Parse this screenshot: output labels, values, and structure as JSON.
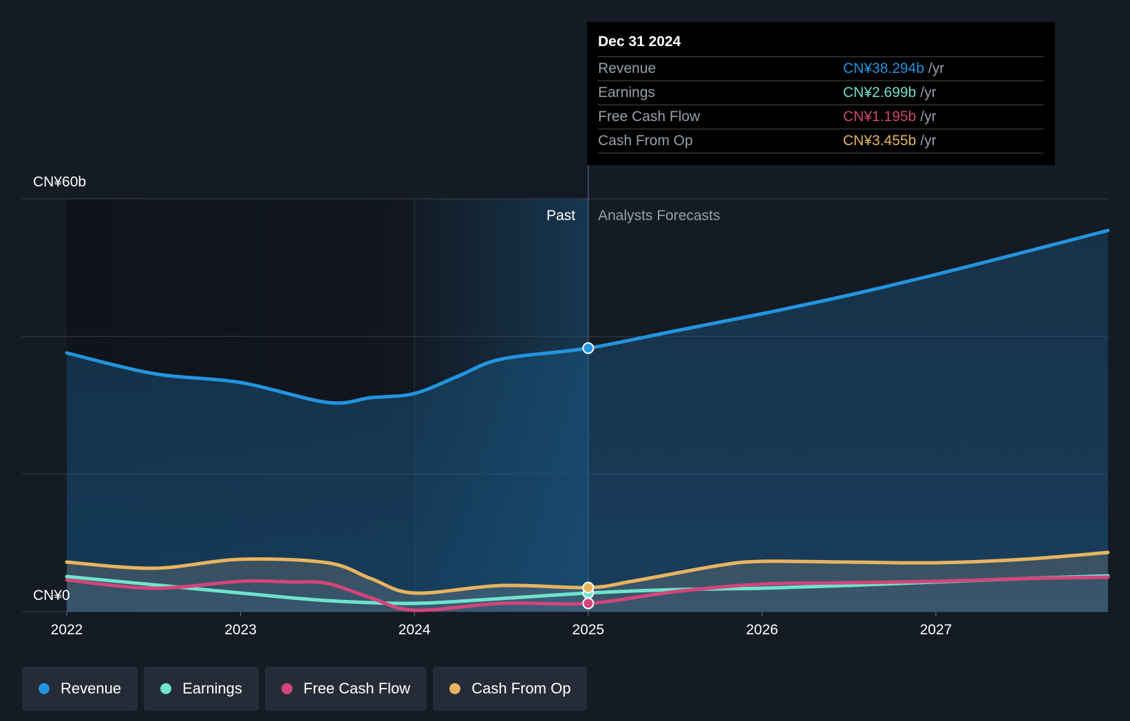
{
  "chart_data": {
    "type": "area",
    "y_axis": {
      "min": 0,
      "max": 60,
      "top_label": "CN¥60b",
      "bottom_label": "CN¥0"
    },
    "x_axis": {
      "min": 2022,
      "max": 2027.99,
      "ticks": [
        "2022",
        "2023",
        "2024",
        "2025",
        "2026",
        "2027"
      ]
    },
    "past_label": "Past",
    "forecast_label": "Analysts Forecasts",
    "divider_x": 2025,
    "highlight_start_x": 2024,
    "series": [
      {
        "name": "Revenue",
        "color": "#2394df",
        "points": [
          [
            2022,
            37.6
          ],
          [
            2022.5,
            34.6
          ],
          [
            2023,
            33.3
          ],
          [
            2023.5,
            30.4
          ],
          [
            2023.75,
            31.1
          ],
          [
            2024,
            31.7
          ],
          [
            2024.25,
            34.2
          ],
          [
            2024.5,
            36.7
          ],
          [
            2025,
            38.3
          ],
          [
            2025.5,
            40.8
          ],
          [
            2026,
            43.3
          ],
          [
            2026.5,
            46.0
          ],
          [
            2027,
            49.0
          ],
          [
            2027.5,
            52.2
          ],
          [
            2027.99,
            55.4
          ]
        ]
      },
      {
        "name": "Earnings",
        "color": "#6fe3cc",
        "points": [
          [
            2022,
            5.1
          ],
          [
            2022.5,
            3.9
          ],
          [
            2023,
            2.7
          ],
          [
            2023.5,
            1.6
          ],
          [
            2024,
            1.2
          ],
          [
            2024.5,
            1.9
          ],
          [
            2025,
            2.7
          ],
          [
            2025.5,
            3.2
          ],
          [
            2026,
            3.4
          ],
          [
            2026.5,
            3.8
          ],
          [
            2027,
            4.3
          ],
          [
            2027.5,
            4.8
          ],
          [
            2027.99,
            5.2
          ]
        ]
      },
      {
        "name": "Free Cash Flow",
        "color": "#d3457a",
        "points": [
          [
            2022,
            4.6
          ],
          [
            2022.5,
            3.4
          ],
          [
            2023,
            4.4
          ],
          [
            2023.3,
            4.3
          ],
          [
            2023.5,
            4.1
          ],
          [
            2023.75,
            2.0
          ],
          [
            2024,
            0.2
          ],
          [
            2024.5,
            1.2
          ],
          [
            2025,
            1.2
          ],
          [
            2025.5,
            2.9
          ],
          [
            2026,
            4.0
          ],
          [
            2026.5,
            4.2
          ],
          [
            2027,
            4.4
          ],
          [
            2027.5,
            4.8
          ],
          [
            2027.99,
            5.0
          ]
        ]
      },
      {
        "name": "Cash From Op",
        "color": "#e8b460",
        "points": [
          [
            2022,
            7.2
          ],
          [
            2022.5,
            6.3
          ],
          [
            2023,
            7.6
          ],
          [
            2023.5,
            7.1
          ],
          [
            2023.75,
            4.8
          ],
          [
            2024,
            2.7
          ],
          [
            2024.5,
            3.8
          ],
          [
            2025,
            3.5
          ],
          [
            2025.25,
            4.4
          ],
          [
            2025.75,
            6.7
          ],
          [
            2026,
            7.3
          ],
          [
            2026.5,
            7.2
          ],
          [
            2027,
            7.1
          ],
          [
            2027.5,
            7.6
          ],
          [
            2027.99,
            8.6
          ]
        ]
      }
    ]
  },
  "tooltip": {
    "date": "Dec 31 2024",
    "unit": "/yr",
    "rows": [
      {
        "label": "Revenue",
        "value": "CN¥38.294b",
        "color": "#2394df"
      },
      {
        "label": "Earnings",
        "value": "CN¥2.699b",
        "color": "#6fe3cc"
      },
      {
        "label": "Free Cash Flow",
        "value": "CN¥1.195b",
        "color": "#d3457a"
      },
      {
        "label": "Cash From Op",
        "value": "CN¥3.455b",
        "color": "#e8b460"
      }
    ]
  },
  "legend": [
    {
      "label": "Revenue",
      "color": "#2394df"
    },
    {
      "label": "Earnings",
      "color": "#6fe3cc"
    },
    {
      "label": "Free Cash Flow",
      "color": "#d3457a"
    },
    {
      "label": "Cash From Op",
      "color": "#e8b460"
    }
  ]
}
